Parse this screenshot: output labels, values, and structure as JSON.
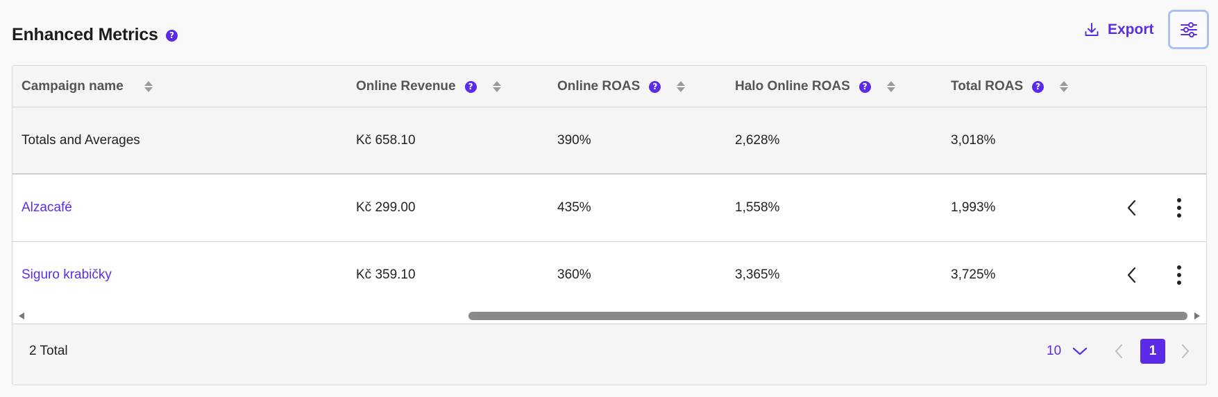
{
  "header": {
    "title": "Enhanced Metrics",
    "help_symbol": "?",
    "export_label": "Export",
    "settings_icon": "sliders-icon"
  },
  "colors": {
    "accent": "#5b2be8",
    "header_bg": "#f5f5f5",
    "focus_ring": "#a9bff5"
  },
  "table": {
    "columns": [
      {
        "label": "Campaign name",
        "has_help": false
      },
      {
        "label": "Online Revenue",
        "has_help": true
      },
      {
        "label": "Online ROAS",
        "has_help": true
      },
      {
        "label": "Halo Online ROAS",
        "has_help": true
      },
      {
        "label": "Total ROAS",
        "has_help": true
      }
    ],
    "totals": {
      "name": "Totals and Averages",
      "online_revenue": "Kč 658.10",
      "online_roas": "390%",
      "halo_online_roas": "2,628%",
      "total_roas": "3,018%"
    },
    "rows": [
      {
        "name": "Alzacafé",
        "online_revenue": "Kč 299.00",
        "online_roas": "435%",
        "halo_online_roas": "1,558%",
        "total_roas": "1,993%"
      },
      {
        "name": "Siguro krabičky",
        "online_revenue": "Kč 359.10",
        "online_roas": "360%",
        "halo_online_roas": "3,365%",
        "total_roas": "3,725%"
      }
    ]
  },
  "footer": {
    "total_text": "2 Total",
    "page_size": "10",
    "current_page": "1"
  }
}
